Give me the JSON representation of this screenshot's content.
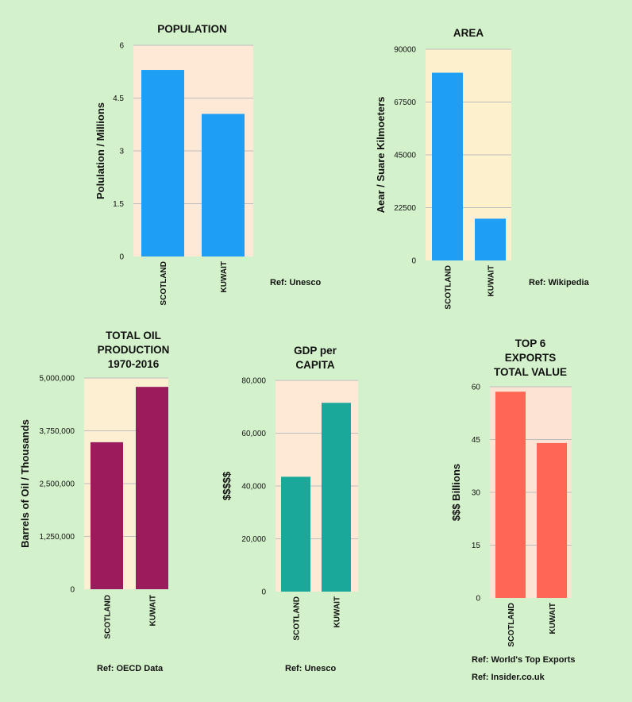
{
  "chart_data": [
    {
      "type": "bar",
      "title": [
        "POPULATION"
      ],
      "ylabel": "Polulation / Millions",
      "categories": [
        "SCOTLAND",
        "KUWAIT"
      ],
      "values": [
        5.3,
        4.05
      ],
      "ylim": [
        0,
        6
      ],
      "yticks": [
        "0",
        "1.5",
        "3",
        "4.5",
        "6"
      ],
      "bar_color": "#1e9ff5",
      "plot_bg": "#fde9d6",
      "ref": [
        "Ref: Unesco"
      ]
    },
    {
      "type": "bar",
      "title": [
        "AREA"
      ],
      "ylabel": "Aear / Suare Kilmoeters",
      "categories": [
        "SCOTLAND",
        "KUWAIT"
      ],
      "values": [
        80000,
        17800
      ],
      "ylim": [
        0,
        90000
      ],
      "yticks": [
        "0",
        "22500",
        "45000",
        "67500",
        "90000"
      ],
      "bar_color": "#1e9ff5",
      "plot_bg": "#fdf0cc",
      "ref": [
        "Ref: Wikipedia"
      ]
    },
    {
      "type": "bar",
      "title": [
        "TOTAL OIL",
        "PRODUCTION",
        "1970-2016"
      ],
      "ylabel": "Barrels of Oil / Thousands",
      "categories": [
        "SCOTLAND",
        "KUWAIT"
      ],
      "values": [
        3480000,
        4790000
      ],
      "ylim": [
        0,
        5000000
      ],
      "yticks": [
        "0",
        "1,250,000",
        "2,500,000",
        "3,750,000",
        "5,000,000"
      ],
      "bar_color": "#9a1c5c",
      "plot_bg": "#fdf0d2",
      "ref": [
        "Ref: OECD Data"
      ]
    },
    {
      "type": "bar",
      "title": [
        "GDP per",
        "CAPITA"
      ],
      "ylabel": "$$$$$",
      "categories": [
        "SCOTLAND",
        "KUWAIT"
      ],
      "values": [
        43500,
        71500
      ],
      "ylim": [
        0,
        80000
      ],
      "yticks": [
        "0",
        "20,000",
        "40,000",
        "60,000",
        "80,000"
      ],
      "bar_color": "#1aa89a",
      "plot_bg": "#fde9d6",
      "ref": [
        "Ref: Unesco"
      ]
    },
    {
      "type": "bar",
      "title": [
        "TOP 6",
        "EXPORTS",
        "TOTAL VALUE"
      ],
      "ylabel": "$$$ Billions",
      "categories": [
        "SCOTLAND",
        "KUWAIT"
      ],
      "values": [
        58.6,
        44.0
      ],
      "ylim": [
        0,
        60
      ],
      "yticks": [
        "0",
        "15",
        "30",
        "45",
        "60"
      ],
      "bar_color": "#ff6655",
      "plot_bg": "#fde3d3",
      "ref": [
        "Ref: World's Top Exports",
        "Ref: Insider.co.uk"
      ]
    }
  ]
}
